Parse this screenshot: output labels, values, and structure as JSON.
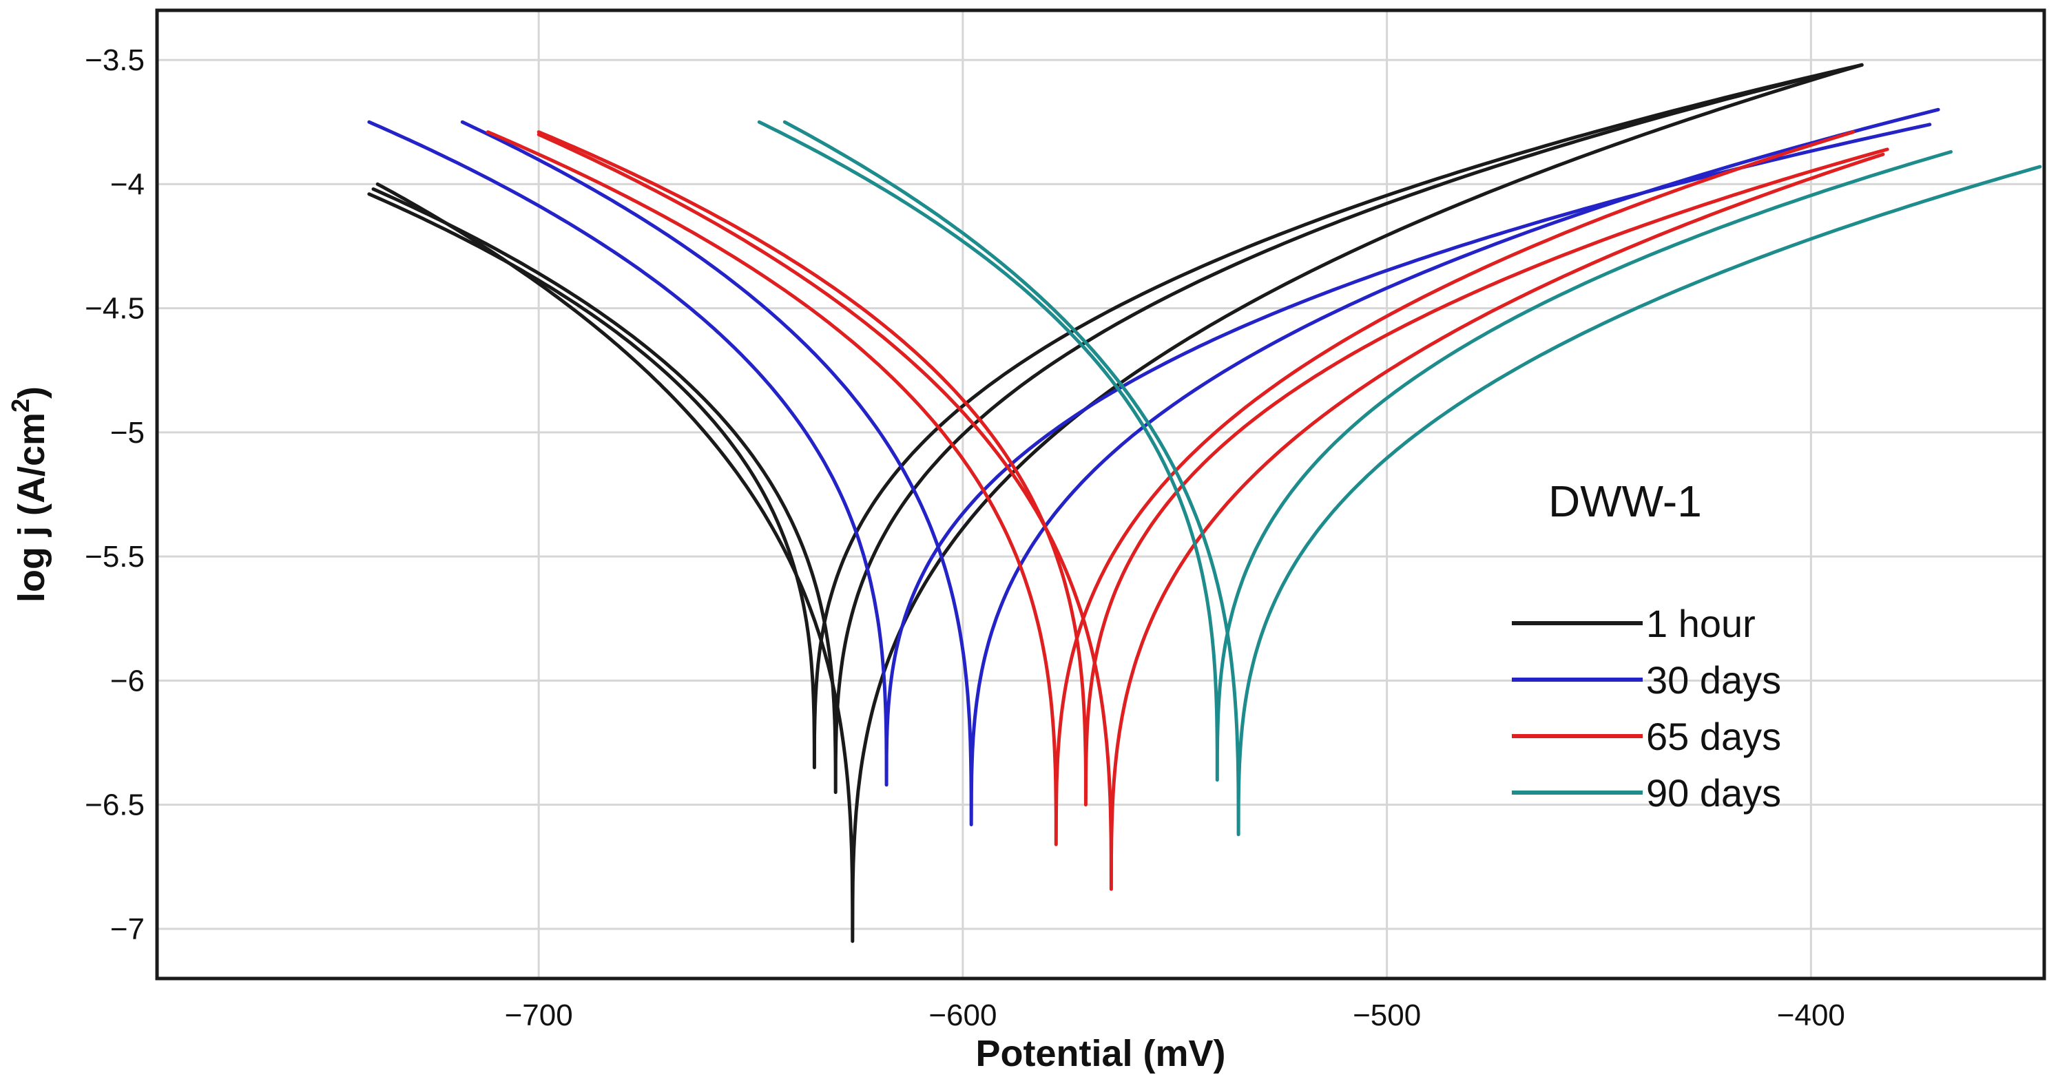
{
  "chart_data": {
    "type": "line",
    "title": "",
    "xlabel": "Potential (mV)",
    "ylabel": "log j (A/cm²)",
    "ylabel_parts": {
      "main": "log j (A/cm",
      "sup": "2",
      "close": ")"
    },
    "xlim": [
      -790,
      -345
    ],
    "ylim": [
      -7.2,
      -3.3
    ],
    "xticks": [
      -700,
      -600,
      -500,
      -400
    ],
    "xtick_labels": [
      "−700",
      "−600",
      "−500",
      "−400"
    ],
    "yticks": [
      -3.5,
      -4,
      -4.5,
      -5,
      -5.5,
      -6,
      -6.5,
      -7
    ],
    "ytick_labels": [
      "−3.5",
      "−4",
      "−4.5",
      "−5",
      "−5.5",
      "−6",
      "−6.5",
      "−7"
    ],
    "grid": true,
    "annotation": "DWW-1",
    "legend": {
      "position": "right"
    },
    "series": [
      {
        "name": "1 hour",
        "color": "#1a1a1a",
        "curves": [
          {
            "ecorr": -635,
            "ymin": -6.35,
            "x0": -740,
            "y0": -4.04,
            "x1": -388,
            "y1": -3.52
          },
          {
            "ecorr": -630,
            "ymin": -6.45,
            "x0": -739,
            "y0": -4.02,
            "x1": -388,
            "y1": -3.52
          },
          {
            "ecorr": -626,
            "ymin": -7.05,
            "x0": -738,
            "y0": -4.0,
            "x1": -388,
            "y1": -3.52
          }
        ]
      },
      {
        "name": "30 days",
        "color": "#2323c8",
        "curves": [
          {
            "ecorr": -618,
            "ymin": -6.42,
            "x0": -740,
            "y0": -3.75,
            "x1": -372,
            "y1": -3.76
          },
          {
            "ecorr": -598,
            "ymin": -6.58,
            "x0": -718,
            "y0": -3.75,
            "x1": -370,
            "y1": -3.7
          }
        ]
      },
      {
        "name": "65 days",
        "color": "#e02020",
        "curves": [
          {
            "ecorr": -578,
            "ymin": -6.66,
            "x0": -712,
            "y0": -3.79,
            "x1": -390,
            "y1": -3.79
          },
          {
            "ecorr": -571,
            "ymin": -6.5,
            "x0": -700,
            "y0": -3.79,
            "x1": -382,
            "y1": -3.86
          },
          {
            "ecorr": -565,
            "ymin": -6.84,
            "x0": -700,
            "y0": -3.8,
            "x1": -383,
            "y1": -3.88
          }
        ]
      },
      {
        "name": "90 days",
        "color": "#1e8c8c",
        "curves": [
          {
            "ecorr": -540,
            "ymin": -6.4,
            "x0": -648,
            "y0": -3.75,
            "x1": -367,
            "y1": -3.87
          },
          {
            "ecorr": -535,
            "ymin": -6.62,
            "x0": -642,
            "y0": -3.75,
            "x1": -346,
            "y1": -3.93
          }
        ]
      }
    ]
  }
}
